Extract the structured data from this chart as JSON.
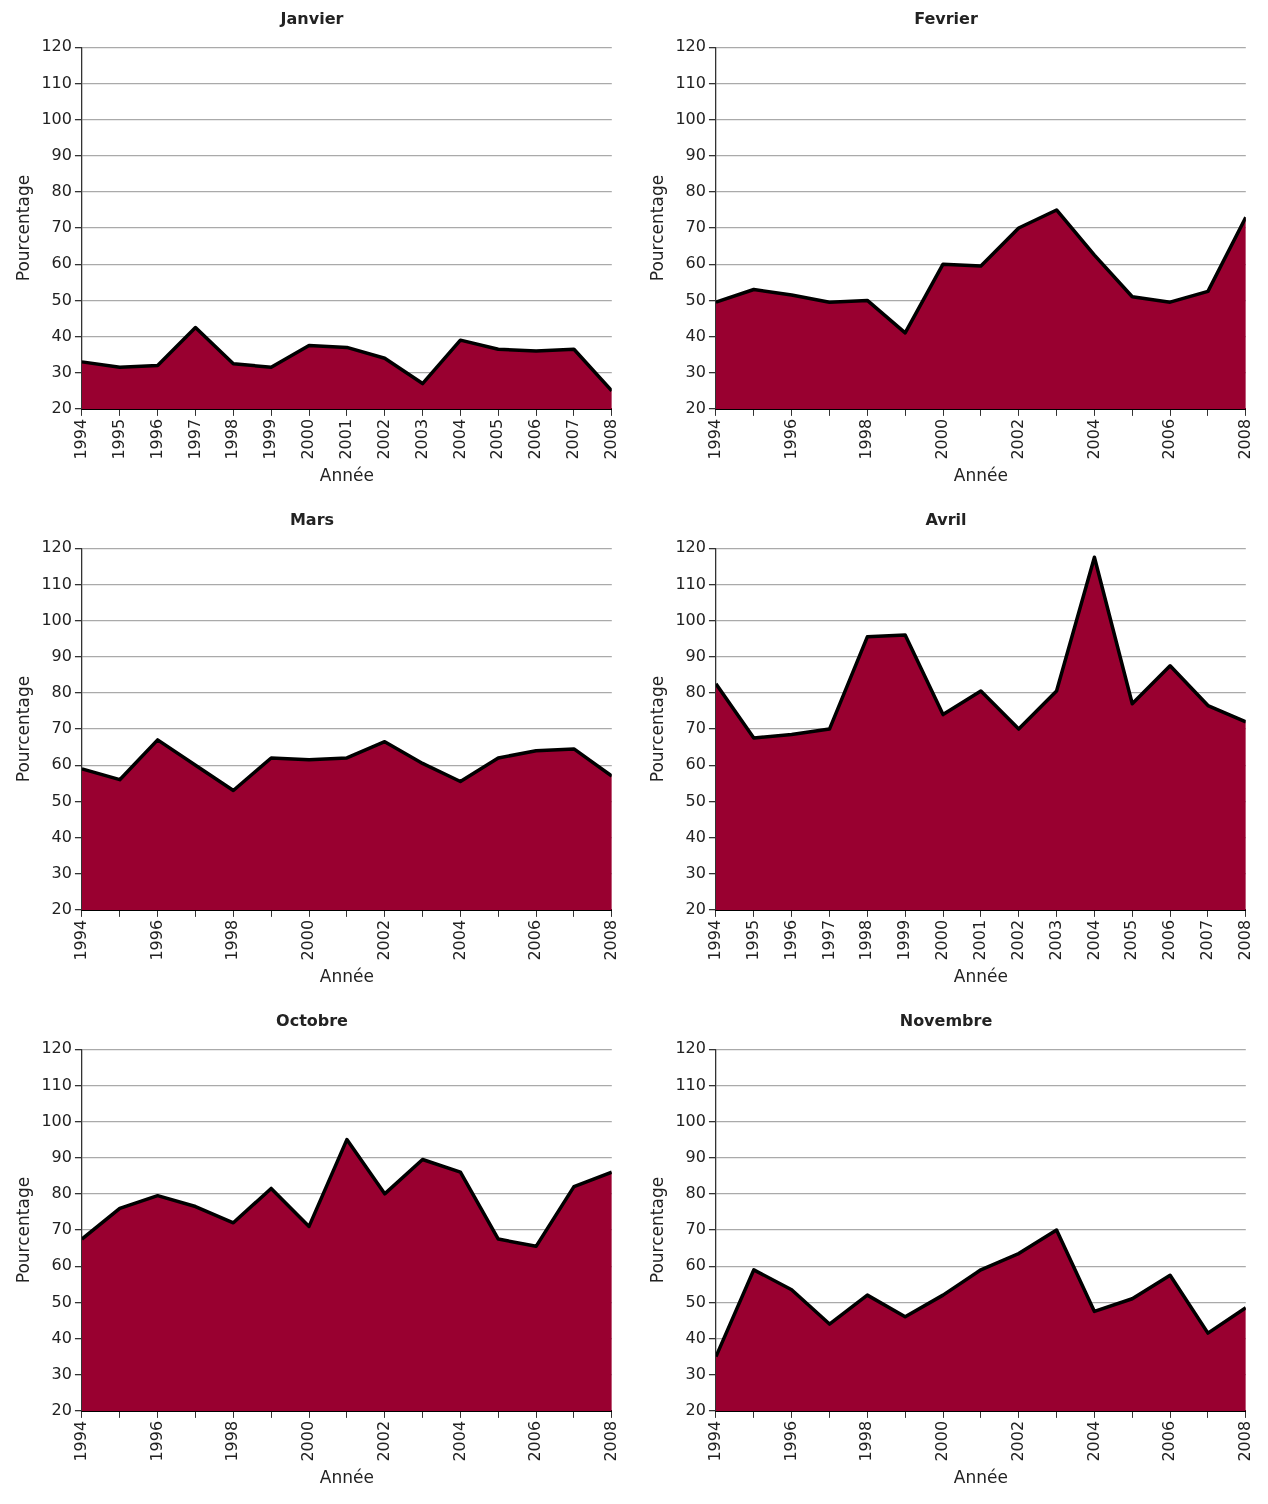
{
  "chart_data": [
    {
      "type": "area",
      "title": "Janvier",
      "xlabel": "Année",
      "ylabel": "Pourcentage",
      "x": [
        1994,
        1995,
        1996,
        1997,
        1998,
        1999,
        2000,
        2001,
        2002,
        2003,
        2004,
        2005,
        2006,
        2007,
        2008
      ],
      "xlim": [
        1994,
        2008
      ],
      "xticks": [
        1994,
        1995,
        1996,
        1997,
        1998,
        1999,
        2000,
        2001,
        2002,
        2003,
        2004,
        2005,
        2006,
        2007,
        2008
      ],
      "ylim": [
        20,
        120
      ],
      "yticks": [
        20,
        30,
        40,
        50,
        60,
        70,
        80,
        90,
        100,
        110,
        120
      ],
      "grid": "y",
      "legend": false,
      "series": [
        {
          "color": "#990030",
          "values": [
            33,
            31.5,
            32,
            42.5,
            32.5,
            31.5,
            37.5,
            37,
            34,
            27,
            39,
            36.5,
            36,
            36.5,
            25
          ]
        }
      ]
    },
    {
      "type": "area",
      "title": "Fevrier",
      "xlabel": "Année",
      "ylabel": "Pourcentage",
      "x": [
        1994,
        1995,
        1996,
        1997,
        1998,
        1999,
        2000,
        2001,
        2002,
        2003,
        2004,
        2005,
        2006,
        2007,
        2008
      ],
      "xlim": [
        1994,
        2008
      ],
      "xticks": [
        1994,
        {
          "value": 1995,
          "label": null
        },
        1996,
        {
          "value": 1997,
          "label": null
        },
        1998,
        {
          "value": 1999,
          "label": null
        },
        2000,
        {
          "value": 2001,
          "label": null
        },
        2002,
        {
          "value": 2003,
          "label": null
        },
        2004,
        {
          "value": 2005,
          "label": null
        },
        2006,
        {
          "value": 2007,
          "label": null
        },
        2008
      ],
      "ylim": [
        20,
        120
      ],
      "yticks": [
        20,
        30,
        40,
        50,
        60,
        70,
        80,
        90,
        100,
        110,
        120
      ],
      "grid": "y",
      "legend": false,
      "series": [
        {
          "color": "#990030",
          "values": [
            49.5,
            53,
            51.5,
            49.5,
            50,
            41,
            60,
            59.5,
            70,
            75,
            62.5,
            51,
            49.5,
            52.5,
            73
          ]
        }
      ]
    },
    {
      "type": "area",
      "title": "Mars",
      "xlabel": "Année",
      "ylabel": "Pourcentage",
      "x": [
        1994,
        1995,
        1996,
        1997,
        1998,
        1999,
        2000,
        2001,
        2002,
        2003,
        2004,
        2005,
        2006,
        2007,
        2008
      ],
      "xlim": [
        1994,
        2008
      ],
      "xticks": [
        1994,
        {
          "value": 1995,
          "label": null
        },
        1996,
        {
          "value": 1997,
          "label": null
        },
        1998,
        {
          "value": 1999,
          "label": null
        },
        2000,
        {
          "value": 2001,
          "label": null
        },
        2002,
        {
          "value": 2003,
          "label": null
        },
        2004,
        {
          "value": 2005,
          "label": null
        },
        2006,
        {
          "value": 2007,
          "label": null
        },
        2008
      ],
      "ylim": [
        20,
        120
      ],
      "yticks": [
        20,
        30,
        40,
        50,
        60,
        70,
        80,
        90,
        100,
        110,
        120
      ],
      "grid": "y",
      "legend": false,
      "series": [
        {
          "color": "#990030",
          "values": [
            59,
            56,
            67,
            60,
            53,
            62,
            61.5,
            62,
            66.5,
            60.5,
            55.5,
            62,
            64,
            64.5,
            57
          ]
        }
      ]
    },
    {
      "type": "area",
      "title": "Avril",
      "xlabel": "Année",
      "ylabel": "Pourcentage",
      "x": [
        1994,
        1995,
        1996,
        1997,
        1998,
        1999,
        2000,
        2001,
        2002,
        2003,
        2004,
        2005,
        2006,
        2007,
        2008
      ],
      "xlim": [
        1994,
        2008
      ],
      "xticks": [
        1994,
        1995,
        1996,
        1997,
        1998,
        1999,
        2000,
        2001,
        2002,
        2003,
        2004,
        2005,
        2006,
        2007,
        2008
      ],
      "ylim": [
        20,
        120
      ],
      "yticks": [
        20,
        30,
        40,
        50,
        60,
        70,
        80,
        90,
        100,
        110,
        120
      ],
      "grid": "y",
      "legend": false,
      "series": [
        {
          "color": "#990030",
          "values": [
            82.5,
            67.5,
            68.5,
            70,
            95.5,
            96,
            74,
            80.5,
            70,
            80.5,
            117.5,
            77,
            87.5,
            76.5,
            72
          ]
        }
      ]
    },
    {
      "type": "area",
      "title": "Octobre",
      "xlabel": "Année",
      "ylabel": "Pourcentage",
      "x": [
        1994,
        1995,
        1996,
        1997,
        1998,
        1999,
        2000,
        2001,
        2002,
        2003,
        2004,
        2005,
        2006,
        2007,
        2008
      ],
      "xlim": [
        1994,
        2008
      ],
      "xticks": [
        1994,
        {
          "value": 1995,
          "label": null
        },
        1996,
        {
          "value": 1997,
          "label": null
        },
        1998,
        {
          "value": 1999,
          "label": null
        },
        2000,
        {
          "value": 2001,
          "label": null
        },
        2002,
        {
          "value": 2003,
          "label": null
        },
        2004,
        {
          "value": 2005,
          "label": null
        },
        2006,
        {
          "value": 2007,
          "label": null
        },
        2008
      ],
      "ylim": [
        20,
        120
      ],
      "yticks": [
        20,
        30,
        40,
        50,
        60,
        70,
        80,
        90,
        100,
        110,
        120
      ],
      "grid": "y",
      "legend": false,
      "series": [
        {
          "color": "#990030",
          "values": [
            67.5,
            76,
            79.5,
            76.5,
            72,
            81.5,
            71,
            95,
            80,
            89.5,
            86,
            67.5,
            65.5,
            82,
            86
          ]
        }
      ]
    },
    {
      "type": "area",
      "title": "Novembre",
      "xlabel": "Année",
      "ylabel": "Pourcentage",
      "x": [
        1994,
        1995,
        1996,
        1997,
        1998,
        1999,
        2000,
        2001,
        2002,
        2003,
        2004,
        2005,
        2006,
        2007,
        2008
      ],
      "xlim": [
        1994,
        2008
      ],
      "xticks": [
        1994,
        {
          "value": 1995,
          "label": null
        },
        1996,
        {
          "value": 1997,
          "label": null
        },
        1998,
        {
          "value": 1999,
          "label": null
        },
        2000,
        {
          "value": 2001,
          "label": null
        },
        2002,
        {
          "value": 2003,
          "label": null
        },
        2004,
        {
          "value": 2005,
          "label": null
        },
        2006,
        {
          "value": 2007,
          "label": null
        },
        2008
      ],
      "ylim": [
        20,
        120
      ],
      "yticks": [
        20,
        30,
        40,
        50,
        60,
        70,
        80,
        90,
        100,
        110,
        120
      ],
      "grid": "y",
      "legend": false,
      "series": [
        {
          "color": "#990030",
          "values": [
            35,
            59,
            53.5,
            44,
            52,
            46,
            52,
            59,
            63.5,
            70,
            47.5,
            51,
            57.5,
            41.5,
            48.5
          ]
        }
      ]
    }
  ]
}
